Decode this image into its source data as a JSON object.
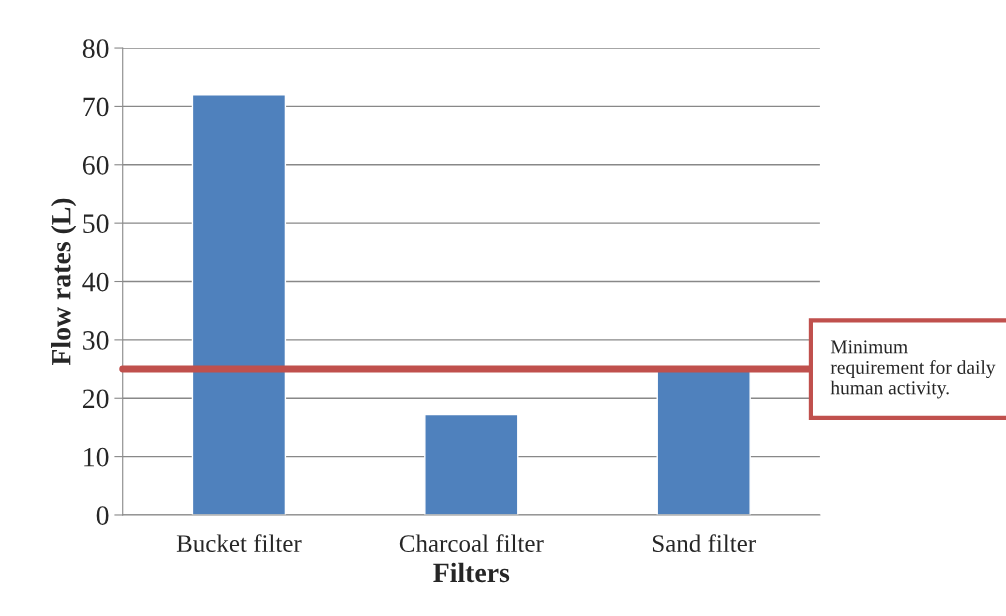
{
  "chart_data": {
    "type": "bar",
    "xlabel": "Filters",
    "ylabel": "Flow rates (L)",
    "categories": [
      "Bucket filter",
      "Charcoal filter",
      "Sand filter"
    ],
    "values": [
      72,
      17.2,
      25
    ],
    "color": "#4f81bd",
    "ylim": [
      0,
      80
    ],
    "yticks": [
      0,
      10,
      20,
      30,
      40,
      50,
      60,
      70,
      80
    ],
    "grid": "y",
    "ref_lines": [
      {
        "axis": "y",
        "value": 25,
        "label": "Minimum requirement for daily human activity.",
        "color": "#c0504d"
      }
    ]
  }
}
